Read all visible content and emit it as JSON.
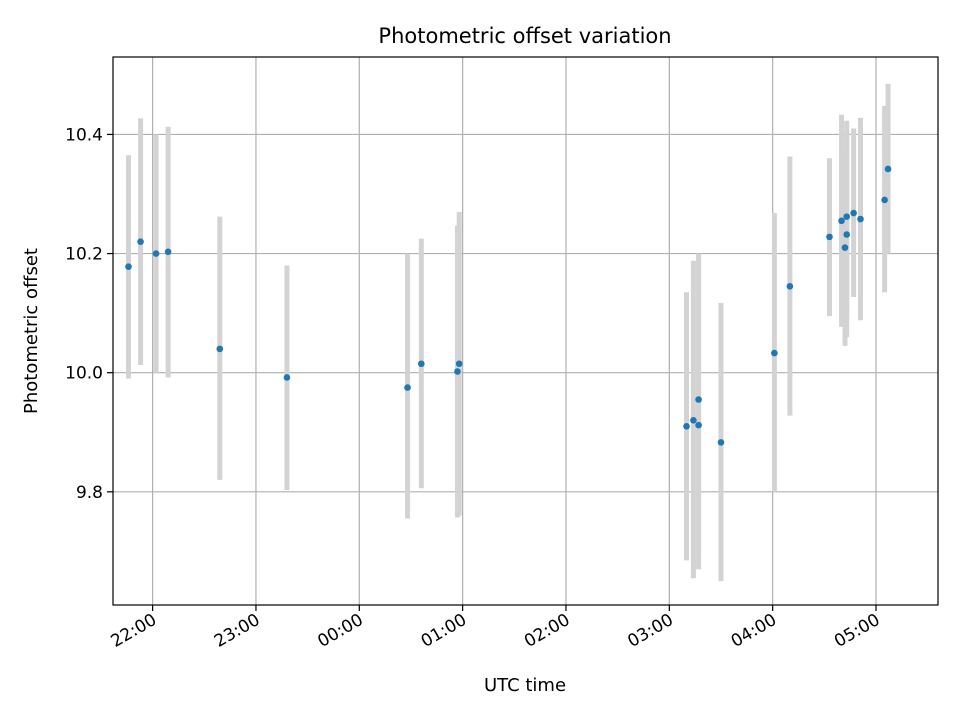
{
  "chart_data": {
    "type": "scatter",
    "title": "Photometric offset variation",
    "xlabel": "UTC time",
    "ylabel": "Photometric offset",
    "grid": true,
    "x_axis": {
      "kind": "time",
      "range": [
        "21:37",
        "05:36"
      ],
      "ticks": [
        "22:00",
        "23:00",
        "00:00",
        "01:00",
        "02:00",
        "03:00",
        "04:00",
        "05:00"
      ]
    },
    "y_axis": {
      "range": [
        9.61,
        10.53
      ],
      "ticks": [
        9.8,
        10.0,
        10.2,
        10.4
      ],
      "tick_labels": [
        "9.8",
        "10.0",
        "10.2",
        "10.4"
      ]
    },
    "colors": {
      "points": "#1f77b4",
      "errorbars": "#d3d3d3",
      "grid": "#b0b0b0"
    },
    "points": [
      {
        "t": "21:46",
        "y": 10.178,
        "ylo": 9.99,
        "yhi": 10.365
      },
      {
        "t": "21:53",
        "y": 10.22,
        "ylo": 10.013,
        "yhi": 10.427
      },
      {
        "t": "22:02",
        "y": 10.2,
        "ylo": 10.0,
        "yhi": 10.4
      },
      {
        "t": "22:09",
        "y": 10.203,
        "ylo": 9.992,
        "yhi": 10.413
      },
      {
        "t": "22:39",
        "y": 10.04,
        "ylo": 9.82,
        "yhi": 10.262
      },
      {
        "t": "23:18",
        "y": 9.992,
        "ylo": 9.803,
        "yhi": 10.18
      },
      {
        "t": "00:28",
        "y": 9.975,
        "ylo": 9.755,
        "yhi": 10.2
      },
      {
        "t": "00:36",
        "y": 10.015,
        "ylo": 9.806,
        "yhi": 10.225
      },
      {
        "t": "00:57",
        "y": 10.002,
        "ylo": 9.757,
        "yhi": 10.247
      },
      {
        "t": "00:58",
        "y": 10.015,
        "ylo": 9.76,
        "yhi": 10.27
      },
      {
        "t": "03:10",
        "y": 9.91,
        "ylo": 9.685,
        "yhi": 10.135
      },
      {
        "t": "03:14",
        "y": 9.92,
        "ylo": 9.655,
        "yhi": 10.188
      },
      {
        "t": "03:17",
        "y": 9.912,
        "ylo": 9.67,
        "yhi": 10.2
      },
      {
        "t": "03:17",
        "y": 9.955,
        "ylo": 9.7,
        "yhi": 10.19
      },
      {
        "t": "03:30",
        "y": 9.883,
        "ylo": 9.65,
        "yhi": 10.117
      },
      {
        "t": "04:01",
        "y": 10.033,
        "ylo": 9.8,
        "yhi": 10.268
      },
      {
        "t": "04:10",
        "y": 10.145,
        "ylo": 9.928,
        "yhi": 10.363
      },
      {
        "t": "04:33",
        "y": 10.228,
        "ylo": 10.095,
        "yhi": 10.36
      },
      {
        "t": "04:40",
        "y": 10.255,
        "ylo": 10.077,
        "yhi": 10.433
      },
      {
        "t": "04:42",
        "y": 10.21,
        "ylo": 10.045,
        "yhi": 10.375
      },
      {
        "t": "04:43",
        "y": 10.262,
        "ylo": 10.1,
        "yhi": 10.423
      },
      {
        "t": "04:43",
        "y": 10.232,
        "ylo": 10.06,
        "yhi": 10.405
      },
      {
        "t": "04:47",
        "y": 10.268,
        "ylo": 10.127,
        "yhi": 10.41
      },
      {
        "t": "04:51",
        "y": 10.258,
        "ylo": 10.088,
        "yhi": 10.428
      },
      {
        "t": "05:05",
        "y": 10.29,
        "ylo": 10.135,
        "yhi": 10.448
      },
      {
        "t": "05:07",
        "y": 10.342,
        "ylo": 10.2,
        "yhi": 10.485
      }
    ]
  }
}
